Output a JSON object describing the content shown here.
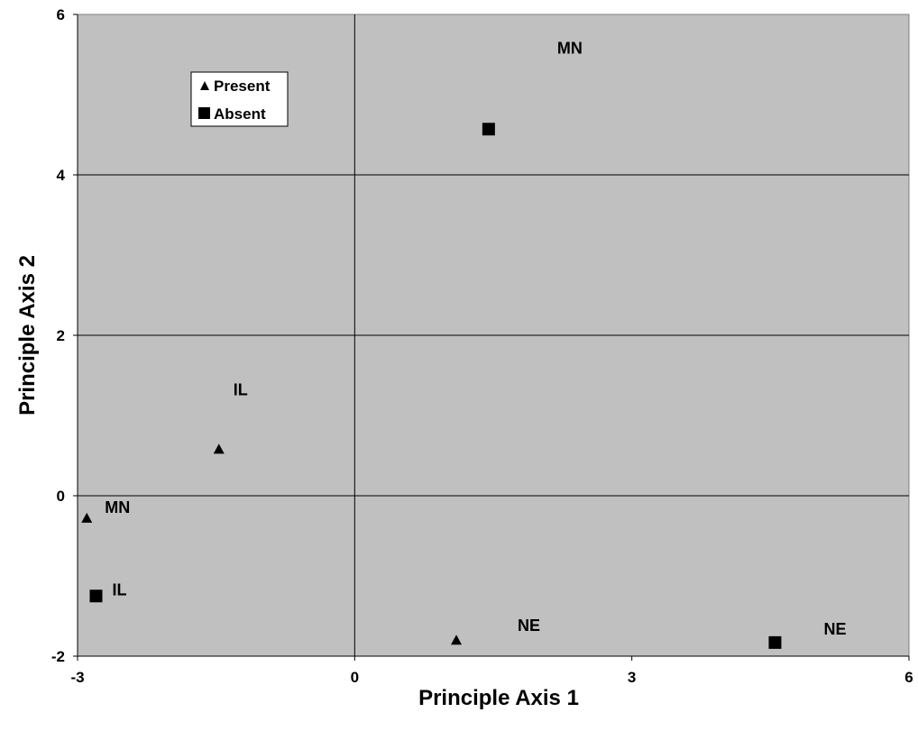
{
  "chart_data": {
    "type": "scatter",
    "title": "",
    "xlabel": "Principle Axis 1",
    "ylabel": "Principle Axis 2",
    "xlim": [
      -3,
      6
    ],
    "ylim": [
      -2,
      6
    ],
    "xticks": [
      "-3",
      "0",
      "3",
      "6"
    ],
    "yticks": [
      "-2",
      "0",
      "2",
      "4",
      "6"
    ],
    "xtick_values": [
      -3,
      0,
      3,
      6
    ],
    "ytick_values": [
      -2,
      0,
      2,
      4,
      6
    ],
    "grid": "horizontal",
    "plot_background": "#c0c0c0",
    "legend_position": "top-left",
    "series": [
      {
        "name": "Present",
        "marker": "triangle",
        "points": [
          {
            "x": -2.9,
            "y": -0.28,
            "label": "MN"
          },
          {
            "x": -1.47,
            "y": 0.58,
            "label": "IL"
          },
          {
            "x": 1.1,
            "y": -1.8,
            "label": "NE"
          }
        ]
      },
      {
        "name": "Absent",
        "marker": "square",
        "points": [
          {
            "x": 1.45,
            "y": 4.57,
            "label": "MN"
          },
          {
            "x": -2.8,
            "y": -1.25,
            "label": "IL"
          },
          {
            "x": 4.55,
            "y": -1.83,
            "label": "NE"
          }
        ]
      }
    ]
  }
}
